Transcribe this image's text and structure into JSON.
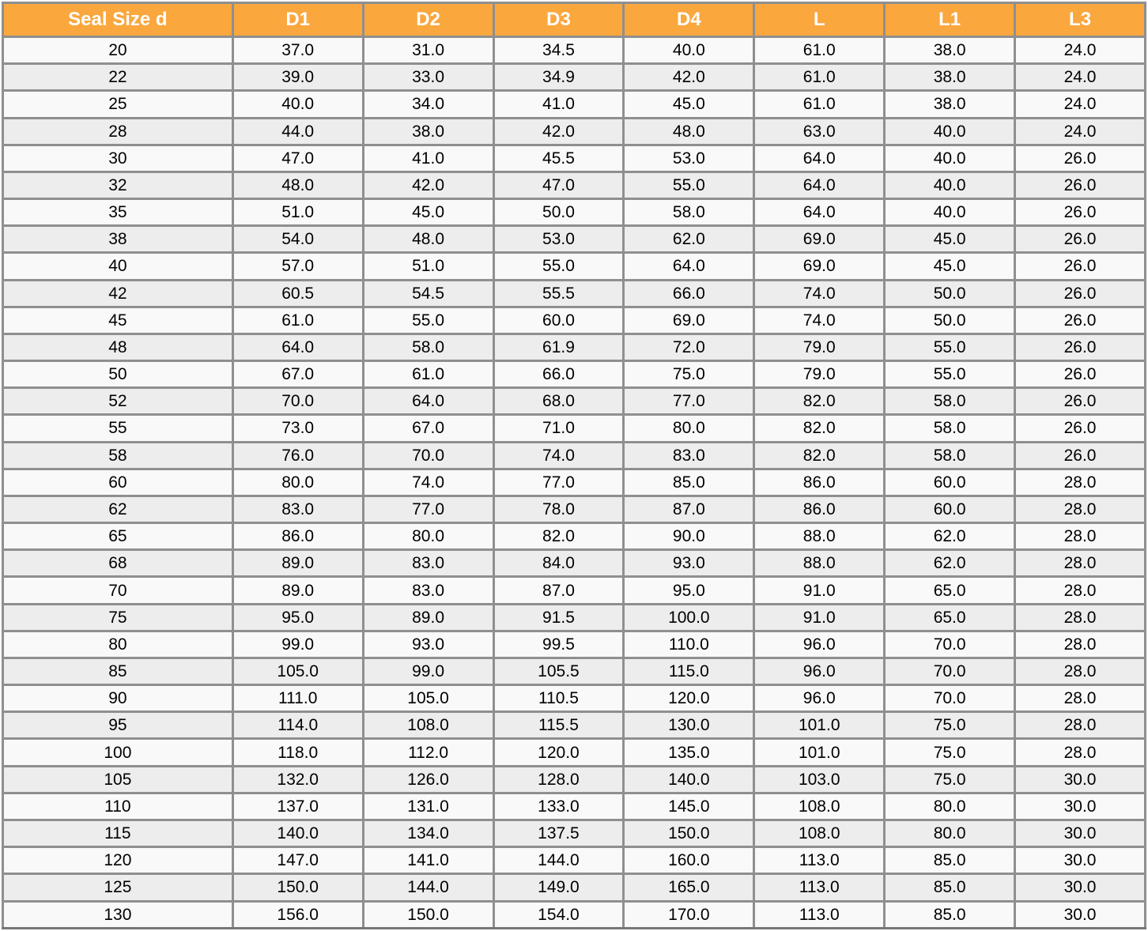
{
  "colors": {
    "header_background": "#faa73e",
    "header_text": "#ffffff",
    "border": "#8f8f8f",
    "row_odd_background": "#f9f9f9",
    "row_even_background": "#ededed",
    "cell_text": "#000000"
  },
  "table": {
    "columns": [
      "Seal Size d",
      "D1",
      "D2",
      "D3",
      "D4",
      "L",
      "L1",
      "L3"
    ],
    "rows": [
      [
        "20",
        "37.0",
        "31.0",
        "34.5",
        "40.0",
        "61.0",
        "38.0",
        "24.0"
      ],
      [
        "22",
        "39.0",
        "33.0",
        "34.9",
        "42.0",
        "61.0",
        "38.0",
        "24.0"
      ],
      [
        "25",
        "40.0",
        "34.0",
        "41.0",
        "45.0",
        "61.0",
        "38.0",
        "24.0"
      ],
      [
        "28",
        "44.0",
        "38.0",
        "42.0",
        "48.0",
        "63.0",
        "40.0",
        "24.0"
      ],
      [
        "30",
        "47.0",
        "41.0",
        "45.5",
        "53.0",
        "64.0",
        "40.0",
        "26.0"
      ],
      [
        "32",
        "48.0",
        "42.0",
        "47.0",
        "55.0",
        "64.0",
        "40.0",
        "26.0"
      ],
      [
        "35",
        "51.0",
        "45.0",
        "50.0",
        "58.0",
        "64.0",
        "40.0",
        "26.0"
      ],
      [
        "38",
        "54.0",
        "48.0",
        "53.0",
        "62.0",
        "69.0",
        "45.0",
        "26.0"
      ],
      [
        "40",
        "57.0",
        "51.0",
        "55.0",
        "64.0",
        "69.0",
        "45.0",
        "26.0"
      ],
      [
        "42",
        "60.5",
        "54.5",
        "55.5",
        "66.0",
        "74.0",
        "50.0",
        "26.0"
      ],
      [
        "45",
        "61.0",
        "55.0",
        "60.0",
        "69.0",
        "74.0",
        "50.0",
        "26.0"
      ],
      [
        "48",
        "64.0",
        "58.0",
        "61.9",
        "72.0",
        "79.0",
        "55.0",
        "26.0"
      ],
      [
        "50",
        "67.0",
        "61.0",
        "66.0",
        "75.0",
        "79.0",
        "55.0",
        "26.0"
      ],
      [
        "52",
        "70.0",
        "64.0",
        "68.0",
        "77.0",
        "82.0",
        "58.0",
        "26.0"
      ],
      [
        "55",
        "73.0",
        "67.0",
        "71.0",
        "80.0",
        "82.0",
        "58.0",
        "26.0"
      ],
      [
        "58",
        "76.0",
        "70.0",
        "74.0",
        "83.0",
        "82.0",
        "58.0",
        "26.0"
      ],
      [
        "60",
        "80.0",
        "74.0",
        "77.0",
        "85.0",
        "86.0",
        "60.0",
        "28.0"
      ],
      [
        "62",
        "83.0",
        "77.0",
        "78.0",
        "87.0",
        "86.0",
        "60.0",
        "28.0"
      ],
      [
        "65",
        "86.0",
        "80.0",
        "82.0",
        "90.0",
        "88.0",
        "62.0",
        "28.0"
      ],
      [
        "68",
        "89.0",
        "83.0",
        "84.0",
        "93.0",
        "88.0",
        "62.0",
        "28.0"
      ],
      [
        "70",
        "89.0",
        "83.0",
        "87.0",
        "95.0",
        "91.0",
        "65.0",
        "28.0"
      ],
      [
        "75",
        "95.0",
        "89.0",
        "91.5",
        "100.0",
        "91.0",
        "65.0",
        "28.0"
      ],
      [
        "80",
        "99.0",
        "93.0",
        "99.5",
        "110.0",
        "96.0",
        "70.0",
        "28.0"
      ],
      [
        "85",
        "105.0",
        "99.0",
        "105.5",
        "115.0",
        "96.0",
        "70.0",
        "28.0"
      ],
      [
        "90",
        "111.0",
        "105.0",
        "110.5",
        "120.0",
        "96.0",
        "70.0",
        "28.0"
      ],
      [
        "95",
        "114.0",
        "108.0",
        "115.5",
        "130.0",
        "101.0",
        "75.0",
        "28.0"
      ],
      [
        "100",
        "118.0",
        "112.0",
        "120.0",
        "135.0",
        "101.0",
        "75.0",
        "28.0"
      ],
      [
        "105",
        "132.0",
        "126.0",
        "128.0",
        "140.0",
        "103.0",
        "75.0",
        "30.0"
      ],
      [
        "110",
        "137.0",
        "131.0",
        "133.0",
        "145.0",
        "108.0",
        "80.0",
        "30.0"
      ],
      [
        "115",
        "140.0",
        "134.0",
        "137.5",
        "150.0",
        "108.0",
        "80.0",
        "30.0"
      ],
      [
        "120",
        "147.0",
        "141.0",
        "144.0",
        "160.0",
        "113.0",
        "85.0",
        "30.0"
      ],
      [
        "125",
        "150.0",
        "144.0",
        "149.0",
        "165.0",
        "113.0",
        "85.0",
        "30.0"
      ],
      [
        "130",
        "156.0",
        "150.0",
        "154.0",
        "170.0",
        "113.0",
        "85.0",
        "30.0"
      ]
    ]
  }
}
